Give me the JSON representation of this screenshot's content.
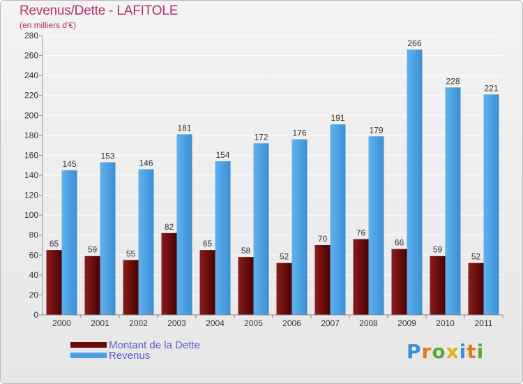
{
  "title": "Revenus/Dette - LAFITOLE",
  "subtitle": "(en milliers d'€)",
  "legend": {
    "items": [
      {
        "label": "Montant de la Dette",
        "color": "#6b0a0a"
      },
      {
        "label": "Revenus",
        "color": "#4aa0e0"
      }
    ]
  },
  "logo": {
    "text": "Proxiti"
  },
  "colors": {
    "debt": "#6b0a0a",
    "revenue": "#4aa0e0",
    "title": "#b0306a",
    "legend_text": "#5a5ad8"
  },
  "chart_data": {
    "type": "bar",
    "title": "Revenus/Dette - LAFITOLE",
    "subtitle": "(en milliers d'€)",
    "categories": [
      "2000",
      "2001",
      "2002",
      "2003",
      "2004",
      "2005",
      "2006",
      "2007",
      "2008",
      "2009",
      "2010",
      "2011"
    ],
    "series": [
      {
        "name": "Montant de la Dette",
        "values": [
          65,
          59,
          55,
          82,
          65,
          58,
          52,
          70,
          76,
          66,
          59,
          52
        ]
      },
      {
        "name": "Revenus",
        "values": [
          145,
          153,
          146,
          181,
          154,
          172,
          176,
          191,
          179,
          266,
          228,
          221
        ]
      }
    ],
    "ylim": [
      0,
      280
    ],
    "yticks": [
      0,
      20,
      40,
      60,
      80,
      100,
      120,
      140,
      160,
      180,
      200,
      220,
      240,
      260,
      280
    ],
    "grid": true,
    "legend": "bottom-left"
  }
}
